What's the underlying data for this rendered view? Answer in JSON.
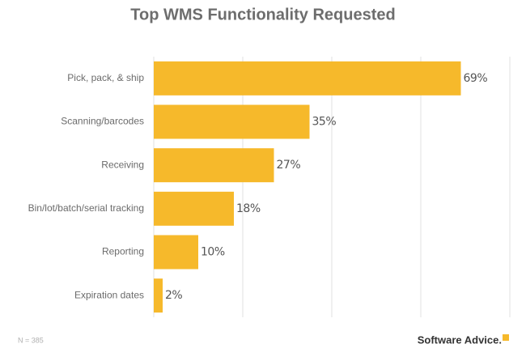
{
  "chart_data": {
    "type": "bar",
    "orientation": "horizontal",
    "title": "Top WMS Functionality Requested",
    "categories": [
      "Pick, pack, & ship",
      "Scanning/barcodes",
      "Receiving",
      "Bin/lot/batch/serial tracking",
      "Reporting",
      "Expiration dates"
    ],
    "values": [
      69,
      35,
      27,
      18,
      10,
      2
    ],
    "value_labels": [
      "69%",
      "35%",
      "27%",
      "18%",
      "10%",
      "2%"
    ],
    "color": "#f6b92b",
    "xlim": [
      0,
      80
    ],
    "xticks": [
      0,
      20,
      40,
      60,
      80
    ],
    "grid": true,
    "note": "N = 385",
    "brand": "Software Advice."
  }
}
